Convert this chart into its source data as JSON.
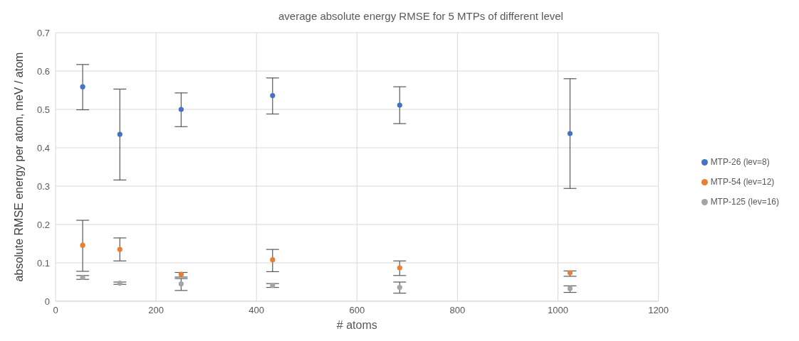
{
  "chart_data": {
    "type": "scatter",
    "title": "average absolute energy RMSE for 5 MTPs of different level",
    "xlabel": "# atoms",
    "ylabel": "absolute RMSE energy per atom, meV / atom",
    "x": [
      54,
      128,
      250,
      432,
      685,
      1024
    ],
    "series": [
      {
        "name": "MTP-26 (lev=8)",
        "color": "#4472c4",
        "values": [
          0.559,
          0.435,
          0.5,
          0.536,
          0.511,
          0.437
        ],
        "errors": [
          [
            0.499,
            0.617
          ],
          [
            0.316,
            0.553
          ],
          [
            0.455,
            0.543
          ],
          [
            0.488,
            0.582
          ],
          [
            0.463,
            0.559
          ],
          [
            0.294,
            0.58
          ]
        ]
      },
      {
        "name": "MTP-54 (lev=12)",
        "color": "#ed7d31",
        "values": [
          0.146,
          0.135,
          0.07,
          0.108,
          0.087,
          0.074
        ],
        "errors": [
          [
            0.078,
            0.211
          ],
          [
            0.105,
            0.165
          ],
          [
            0.063,
            0.075
          ],
          [
            0.077,
            0.135
          ],
          [
            0.067,
            0.105
          ],
          [
            0.065,
            0.079
          ]
        ]
      },
      {
        "name": "MTP-125 (lev=16)",
        "color": "#a5a5a5",
        "values": [
          0.062,
          0.047,
          0.045,
          0.041,
          0.036,
          0.033
        ],
        "errors": [
          [
            0.057,
            0.067
          ],
          [
            0.044,
            0.05
          ],
          [
            0.028,
            0.059
          ],
          [
            0.036,
            0.046
          ],
          [
            0.021,
            0.05
          ],
          [
            0.023,
            0.04
          ]
        ]
      }
    ],
    "xlim": [
      0,
      1200
    ],
    "xticks": [
      0,
      200,
      400,
      600,
      800,
      1000,
      1200
    ],
    "ylim": [
      0,
      0.7
    ],
    "yticks": [
      0,
      0.1,
      0.2,
      0.3,
      0.4,
      0.5,
      0.6,
      0.7
    ],
    "grid": true,
    "legend": "right",
    "marker": "circle"
  }
}
